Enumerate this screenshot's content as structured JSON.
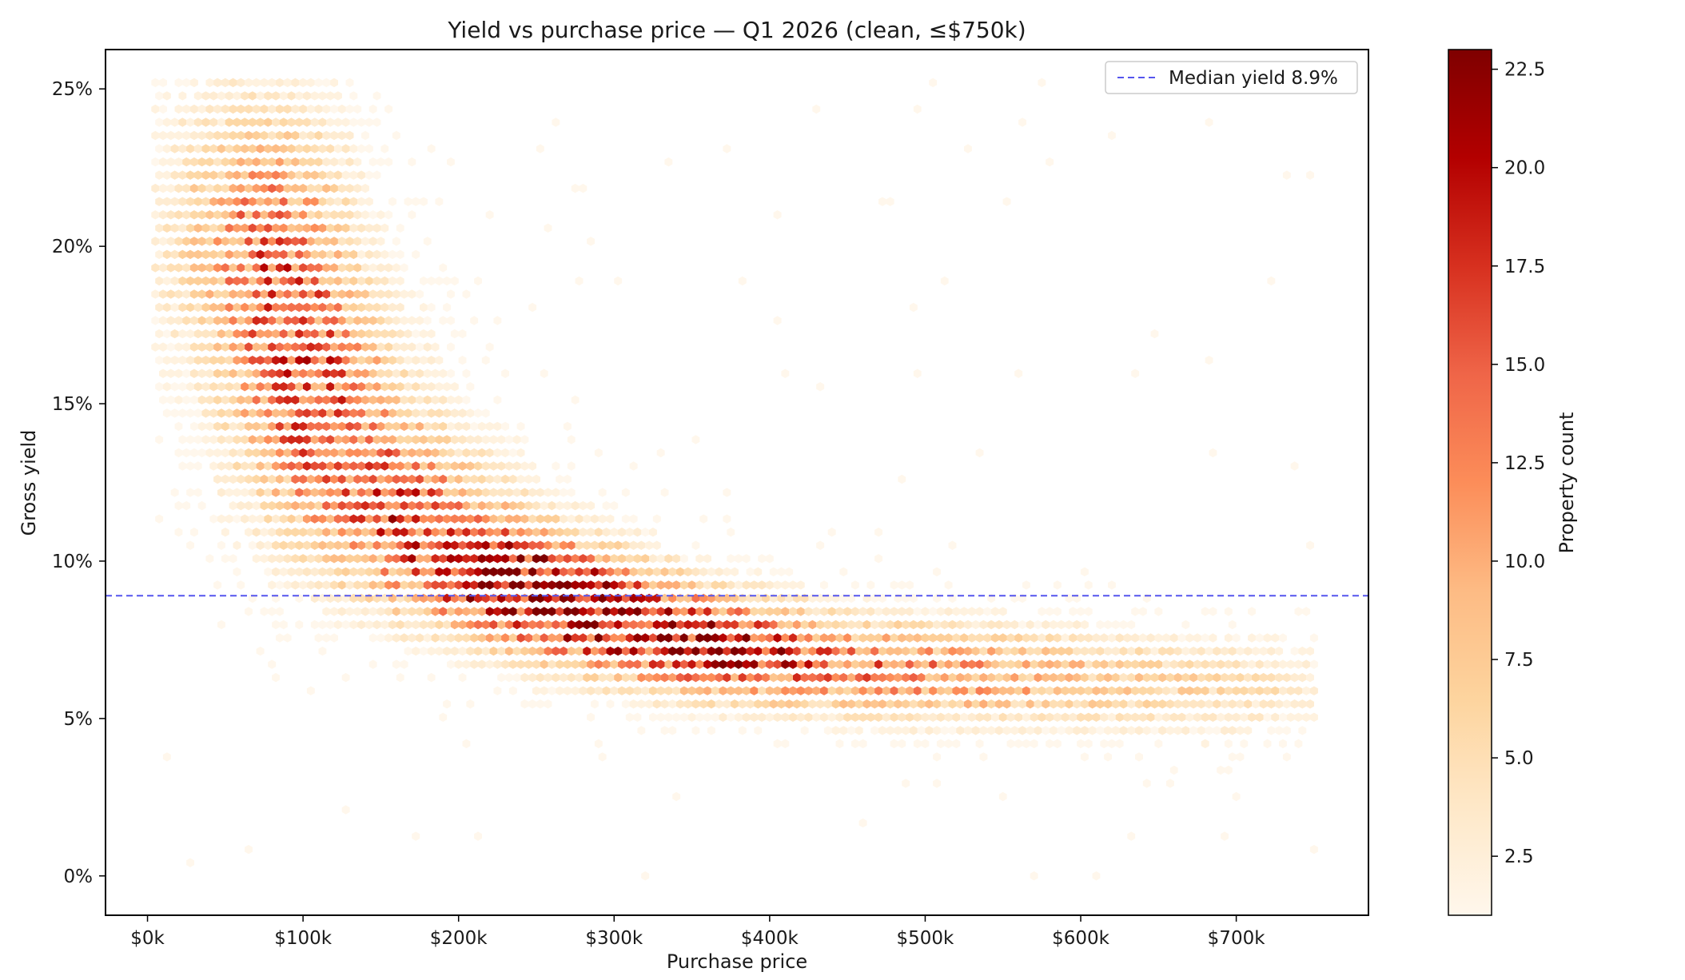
{
  "chart_data": {
    "type": "hexbin",
    "title": "Yield vs purchase price — Q1 2026 (clean, ≤$750k)",
    "xlabel": "Purchase price",
    "ylabel": "Gross yield",
    "xlim": [
      -27000,
      785000
    ],
    "ylim": [
      -0.0125,
      0.2625
    ],
    "x_ticks": [
      {
        "value": 0,
        "label": "$0k"
      },
      {
        "value": 100000,
        "label": "$100k"
      },
      {
        "value": 200000,
        "label": "$200k"
      },
      {
        "value": 300000,
        "label": "$300k"
      },
      {
        "value": 400000,
        "label": "$400k"
      },
      {
        "value": 500000,
        "label": "$500k"
      },
      {
        "value": 600000,
        "label": "$600k"
      },
      {
        "value": 700000,
        "label": "$700k"
      }
    ],
    "y_ticks": [
      {
        "value": 0.0,
        "label": "0%"
      },
      {
        "value": 0.05,
        "label": "5%"
      },
      {
        "value": 0.1,
        "label": "10%"
      },
      {
        "value": 0.15,
        "label": "15%"
      },
      {
        "value": 0.2,
        "label": "20%"
      },
      {
        "value": 0.25,
        "label": "25%"
      }
    ],
    "median_line": {
      "value": 0.089,
      "label": "Median yield 8.9%",
      "color": "#5555ee"
    },
    "legend_position": "top-right",
    "colorbar": {
      "label": "Property count",
      "min": 1,
      "max": 23,
      "colormap": "OrRd",
      "ticks": [
        {
          "value": 2.5,
          "label": "2.5"
        },
        {
          "value": 5.0,
          "label": "5.0"
        },
        {
          "value": 7.5,
          "label": "7.5"
        },
        {
          "value": 10.0,
          "label": "10.0"
        },
        {
          "value": 12.5,
          "label": "12.5"
        },
        {
          "value": 15.0,
          "label": "15.0"
        },
        {
          "value": 17.5,
          "label": "17.5"
        },
        {
          "value": 20.0,
          "label": "20.0"
        },
        {
          "value": 22.5,
          "label": "22.5"
        }
      ]
    },
    "hex_grid": {
      "x_step": 5000,
      "y_step": 0.0042
    },
    "density_ridges": [
      {
        "x": 60000,
        "y": 0.205,
        "sx": 40000,
        "sy": 0.03,
        "peak": 7
      },
      {
        "x": 90000,
        "y": 0.18,
        "sx": 30000,
        "sy": 0.035,
        "peak": 9
      },
      {
        "x": 120000,
        "y": 0.145,
        "sx": 35000,
        "sy": 0.025,
        "peak": 10
      },
      {
        "x": 170000,
        "y": 0.115,
        "sx": 40000,
        "sy": 0.018,
        "peak": 12
      },
      {
        "x": 230000,
        "y": 0.095,
        "sx": 40000,
        "sy": 0.012,
        "peak": 17
      },
      {
        "x": 290000,
        "y": 0.083,
        "sx": 40000,
        "sy": 0.011,
        "peak": 18
      },
      {
        "x": 370000,
        "y": 0.073,
        "sx": 45000,
        "sy": 0.01,
        "peak": 16
      },
      {
        "x": 460000,
        "y": 0.066,
        "sx": 55000,
        "sy": 0.01,
        "peak": 10
      },
      {
        "x": 560000,
        "y": 0.063,
        "sx": 55000,
        "sy": 0.01,
        "peak": 7
      },
      {
        "x": 680000,
        "y": 0.06,
        "sx": 60000,
        "sy": 0.01,
        "peak": 5
      }
    ],
    "hotspots": [
      {
        "x": 238000,
        "y": 0.091,
        "count": 23
      },
      {
        "x": 258000,
        "y": 0.092,
        "count": 22
      },
      {
        "x": 276000,
        "y": 0.078,
        "count": 22
      },
      {
        "x": 375000,
        "y": 0.072,
        "count": 23
      },
      {
        "x": 410000,
        "y": 0.069,
        "count": 22
      },
      {
        "x": 318000,
        "y": 0.075,
        "count": 21
      },
      {
        "x": 325000,
        "y": 0.081,
        "count": 20
      },
      {
        "x": 200000,
        "y": 0.1,
        "count": 20
      },
      {
        "x": 282000,
        "y": 0.084,
        "count": 20
      },
      {
        "x": 402000,
        "y": 0.072,
        "count": 19
      },
      {
        "x": 300000,
        "y": 0.083,
        "count": 19
      },
      {
        "x": 86000,
        "y": 0.191,
        "count": 14
      },
      {
        "x": 110000,
        "y": 0.14,
        "count": 14
      },
      {
        "x": 130000,
        "y": 0.146,
        "count": 13
      },
      {
        "x": 165000,
        "y": 0.125,
        "count": 14
      }
    ]
  }
}
